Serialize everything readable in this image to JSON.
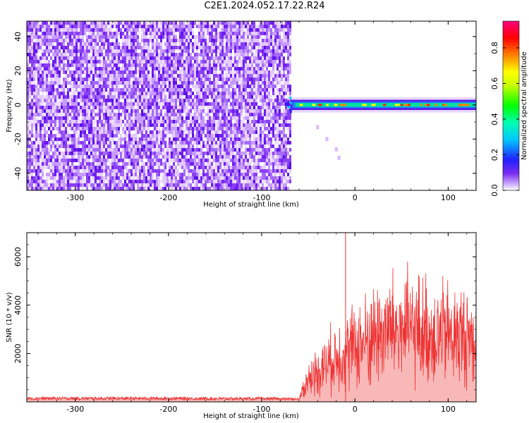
{
  "title": "C2E1.2024.052.17.22.R24",
  "chart_data": [
    {
      "type": "heatmap",
      "title": "C2E1.2024.052.17.22.R24",
      "xlabel": "Height of straight line (km)",
      "ylabel": "Frequency (Hz)",
      "xlim": [
        -352,
        130
      ],
      "ylim": [
        -50,
        49
      ],
      "xticks": [
        -300,
        -200,
        -100,
        0,
        100
      ],
      "xtick_labels": [
        "-300",
        "-200",
        "-100",
        "0",
        "100"
      ],
      "yticks": [
        -40,
        -20,
        0,
        20,
        40
      ],
      "ytick_labels": [
        "-40",
        "-20",
        "0",
        "20",
        "40"
      ],
      "noise_region_x": [
        -352,
        -70
      ],
      "signal_band": {
        "x": [
          -70,
          130
        ],
        "center_freq": 0,
        "half_width_hz": 3
      },
      "drift_trace": [
        [
          -40,
          -13
        ],
        [
          -30,
          -20
        ],
        [
          -20,
          -26
        ],
        [
          -17,
          -31
        ]
      ],
      "colorbar": {
        "label": "Normalized spectral amplitude",
        "range": [
          0,
          0.95
        ],
        "ticks": [
          0.0,
          0.2,
          0.4,
          0.6,
          0.8
        ],
        "tick_labels": [
          "0.0",
          "0.2",
          "0.4",
          "0.6",
          "0.8"
        ]
      }
    },
    {
      "type": "line",
      "xlabel": "Height of straight line (km)",
      "ylabel": "SNR (10 * v/v)",
      "xlim": [
        -352,
        130
      ],
      "ylim": [
        0,
        7000
      ],
      "xticks": [
        -300,
        -200,
        -100,
        0,
        100
      ],
      "xtick_labels": [
        "-300",
        "-200",
        "-100",
        "0",
        "100"
      ],
      "yticks": [
        2000,
        4000,
        6000
      ],
      "ytick_labels": [
        "2000",
        "4000",
        "6000"
      ],
      "series": [
        {
          "color": "#ee3333",
          "x": [
            -352,
            -300,
            -250,
            -200,
            -150,
            -100,
            -75,
            -60,
            -55,
            -50,
            -40,
            -30,
            -20,
            -10,
            0,
            10,
            20,
            30,
            40,
            50,
            60,
            70,
            80,
            90,
            100,
            110,
            120,
            130
          ],
          "y": [
            150,
            150,
            150,
            150,
            140,
            140,
            130,
            120,
            600,
            900,
            1300,
            1600,
            1900,
            2100,
            2300,
            2500,
            2750,
            2950,
            3050,
            3050,
            3000,
            2950,
            2900,
            2850,
            2800,
            2750,
            2700,
            2700
          ],
          "spike_x": -10,
          "spike_y": 7000
        }
      ]
    }
  ]
}
